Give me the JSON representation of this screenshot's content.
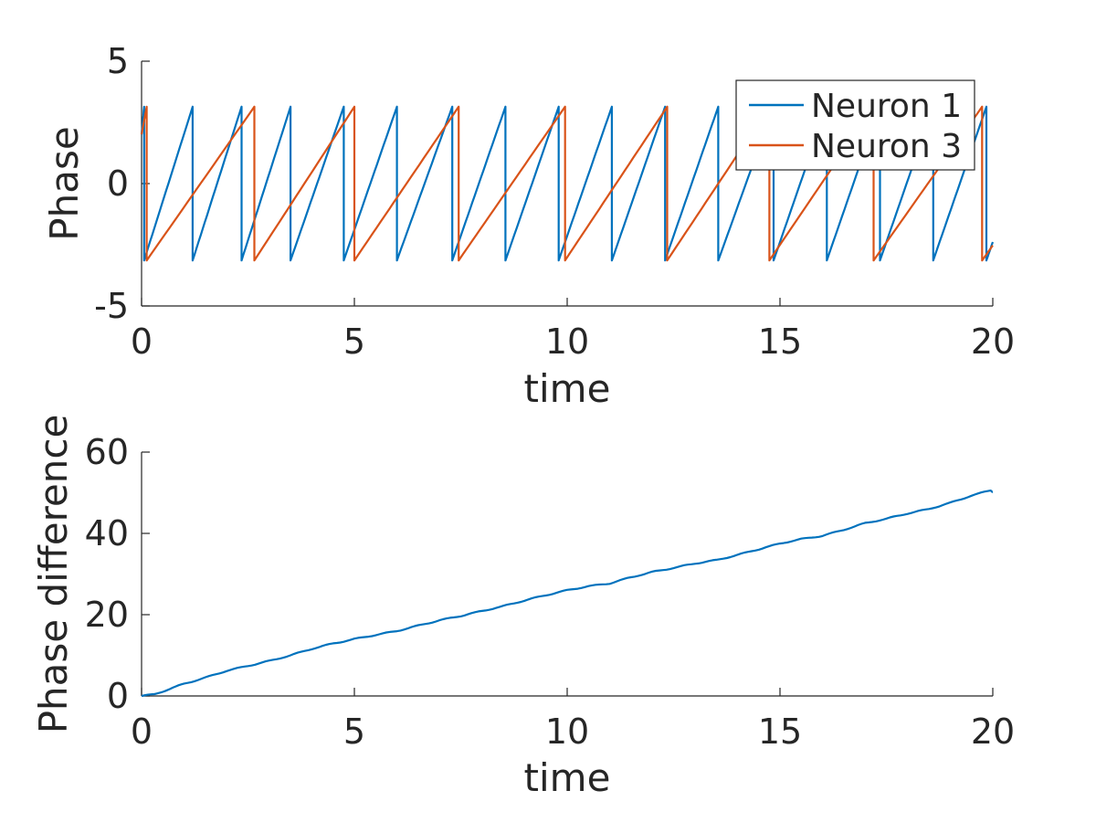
{
  "chart_data": [
    {
      "type": "line",
      "xlabel": "time",
      "ylabel": "Phase",
      "xlim": [
        0,
        20
      ],
      "ylim": [
        -5,
        5
      ],
      "xticks": [
        0,
        5,
        10,
        15,
        20
      ],
      "yticks": [
        -5,
        0,
        5
      ],
      "xtick_labels": [
        "0",
        "5",
        "10",
        "15",
        "20"
      ],
      "ytick_labels": [
        "-5",
        "0",
        "5"
      ],
      "grid": false,
      "legend": "top-right",
      "series": [
        {
          "name": "Neuron 1",
          "color": "#0072BD",
          "model": "sawtooth",
          "phase_min": -3.14,
          "phase_max": 3.14,
          "wrap_times": [
            0.06,
            1.2,
            2.35,
            3.5,
            4.75,
            6.0,
            7.3,
            8.55,
            9.8,
            11.05,
            12.3,
            13.55,
            14.85,
            16.1,
            17.35,
            18.6,
            19.85
          ]
        },
        {
          "name": "Neuron 3",
          "color": "#D95319",
          "model": "sawtooth",
          "phase_min": -3.14,
          "phase_max": 3.14,
          "wrap_times": [
            0.12,
            2.65,
            5.0,
            7.45,
            9.95,
            12.35,
            14.75,
            17.2,
            19.75
          ]
        }
      ]
    },
    {
      "type": "line",
      "xlabel": "time",
      "ylabel": "Phase difference",
      "xlim": [
        0,
        20
      ],
      "ylim": [
        0,
        60
      ],
      "xticks": [
        0,
        5,
        10,
        15,
        20
      ],
      "yticks": [
        0,
        20,
        40,
        60
      ],
      "xtick_labels": [
        "0",
        "5",
        "10",
        "15",
        "20"
      ],
      "ytick_labels": [
        "0",
        "20",
        "40",
        "60"
      ],
      "grid": false,
      "series": [
        {
          "color": "#0072BD",
          "x": [
            0,
            0.3,
            0.6,
            1.0,
            1.5,
            2.0,
            2.5,
            3.0,
            3.5,
            4.0,
            4.5,
            5.0,
            5.5,
            6.0,
            6.5,
            7.0,
            7.5,
            8.0,
            8.5,
            9.0,
            9.5,
            10.0,
            10.5,
            11.0,
            11.5,
            12.0,
            12.5,
            13.0,
            13.5,
            14.0,
            14.5,
            15.0,
            15.5,
            16.0,
            16.5,
            17.0,
            17.5,
            18.0,
            18.5,
            19.0,
            19.5,
            19.95,
            20.0
          ],
          "y": [
            0,
            0.4,
            1.5,
            3.0,
            4.5,
            6.2,
            7.4,
            8.6,
            10.0,
            11.6,
            12.9,
            14.0,
            15.0,
            16.0,
            17.3,
            18.6,
            19.7,
            20.9,
            22.1,
            23.5,
            24.8,
            26.0,
            27.0,
            27.7,
            29.2,
            30.5,
            31.5,
            32.6,
            33.4,
            34.7,
            36.1,
            37.5,
            38.6,
            39.4,
            40.9,
            42.5,
            43.6,
            44.9,
            46.0,
            47.5,
            49.3,
            50.6,
            50.2
          ]
        }
      ]
    }
  ]
}
